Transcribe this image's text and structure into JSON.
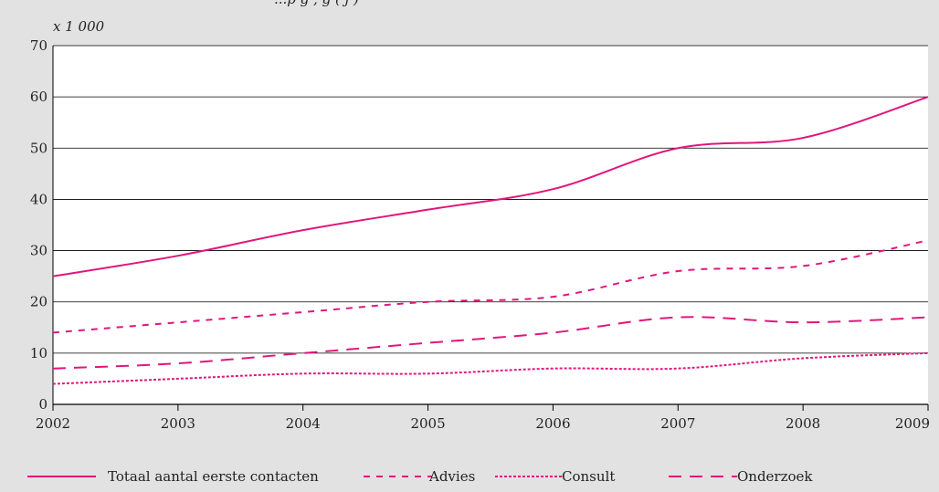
{
  "chart_data": {
    "type": "line",
    "title": "...p                                    g   ,   g   (     j  )",
    "unit_label": "x 1 000",
    "xlabel": "",
    "ylabel": "",
    "x": [
      2002,
      2003,
      2004,
      2005,
      2006,
      2007,
      2008,
      2009
    ],
    "xlim": [
      2002,
      2009
    ],
    "ylim": [
      0,
      70
    ],
    "yticks": [
      0,
      10,
      20,
      30,
      40,
      50,
      60,
      70
    ],
    "grid": true,
    "legend_position": "bottom",
    "color": "#e0177c",
    "series": [
      {
        "name": "Totaal aantal eerste contacten",
        "dash": "solid",
        "values": [
          25,
          29,
          34,
          38,
          42,
          50,
          52,
          60
        ]
      },
      {
        "name": "Advies",
        "dash": "dashed",
        "values": [
          14,
          16,
          18,
          20,
          21,
          26,
          27,
          32
        ]
      },
      {
        "name": "Consult",
        "dash": "dotted",
        "values": [
          4,
          5,
          6,
          6,
          7,
          7,
          9,
          10
        ]
      },
      {
        "name": "Onderzoek",
        "dash": "longdash",
        "values": [
          7,
          8,
          10,
          12,
          14,
          17,
          16,
          17
        ]
      }
    ]
  }
}
